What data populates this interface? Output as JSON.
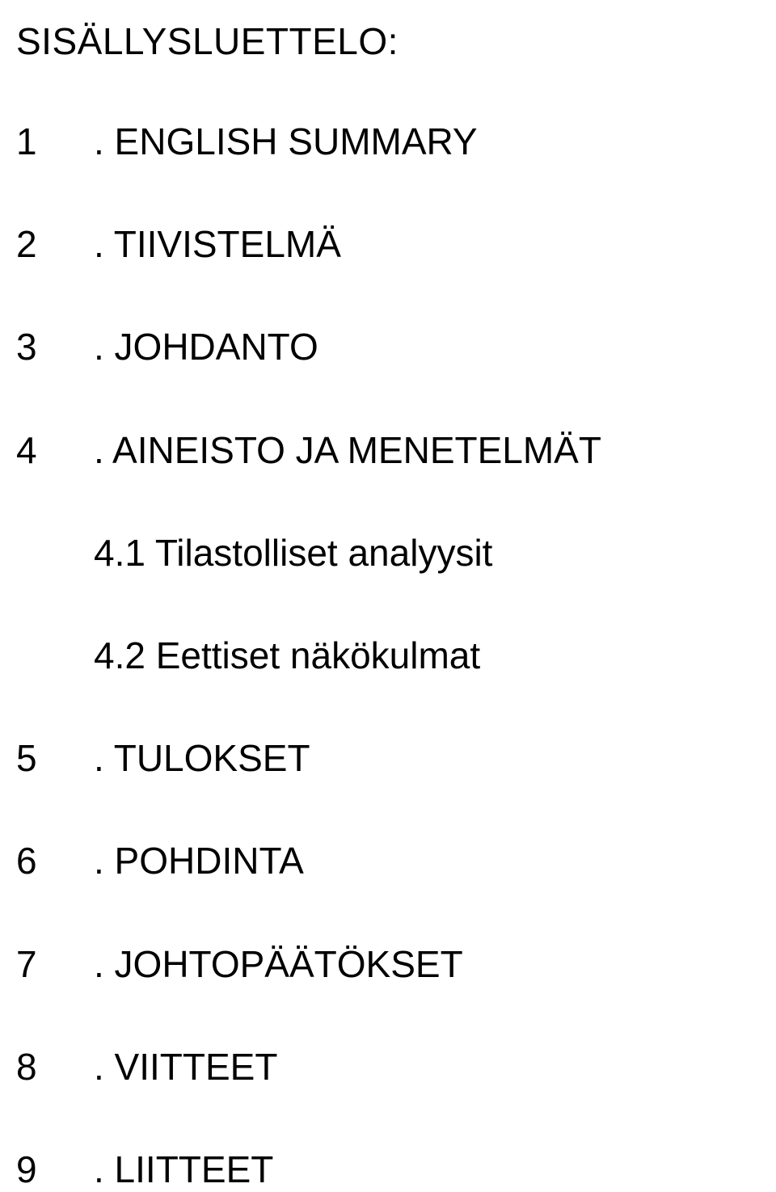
{
  "title": "SISÄLLYSLUETTELO:",
  "items": [
    {
      "num": "1",
      "label": ". ENGLISH SUMMARY"
    },
    {
      "num": "2",
      "label": ". TIIVISTELMÄ"
    },
    {
      "num": "3",
      "label": ". JOHDANTO"
    },
    {
      "num": "4",
      "label": ". AINEISTO JA MENETELMÄT"
    }
  ],
  "subitems": [
    {
      "label": "4.1 Tilastolliset analyysit"
    },
    {
      "label": "4.2 Eettiset näkökulmat"
    }
  ],
  "items2": [
    {
      "num": "5",
      "label": ". TULOKSET"
    },
    {
      "num": "6",
      "label": ". POHDINTA"
    },
    {
      "num": "7",
      "label": ". JOHTOPÄÄTÖKSET"
    },
    {
      "num": "8",
      "label": ". VIITTEET"
    },
    {
      "num": "9",
      "label": ". LIITTEET"
    }
  ]
}
